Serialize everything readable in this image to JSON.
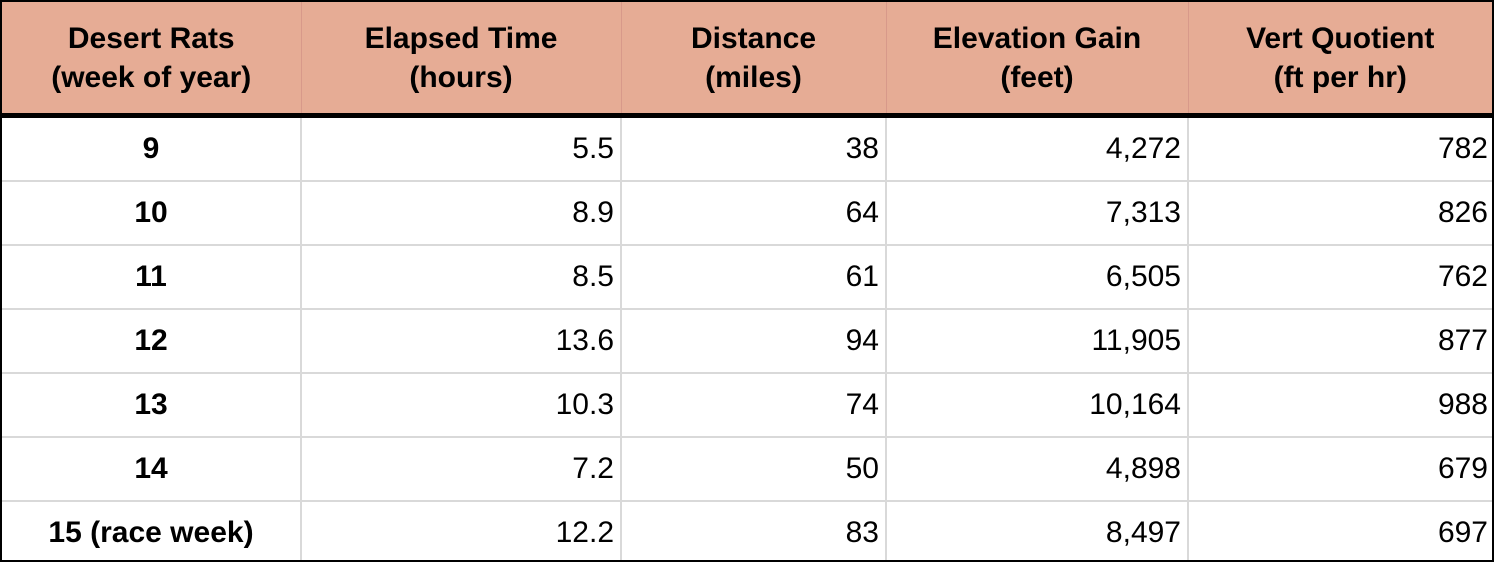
{
  "table": {
    "headers": [
      {
        "line1": "Desert Rats",
        "line2": "(week of year)"
      },
      {
        "line1": "Elapsed Time",
        "line2": "(hours)"
      },
      {
        "line1": "Distance",
        "line2": "(miles)"
      },
      {
        "line1": "Elevation Gain",
        "line2": "(feet)"
      },
      {
        "line1": "Vert Quotient",
        "line2": "(ft per hr)"
      }
    ],
    "rows": [
      {
        "week": "9",
        "elapsed": "5.5",
        "distance": "38",
        "elevation": "4,272",
        "vert": "782"
      },
      {
        "week": "10",
        "elapsed": "8.9",
        "distance": "64",
        "elevation": "7,313",
        "vert": "826"
      },
      {
        "week": "11",
        "elapsed": "8.5",
        "distance": "61",
        "elevation": "6,505",
        "vert": "762"
      },
      {
        "week": "12",
        "elapsed": "13.6",
        "distance": "94",
        "elevation": "11,905",
        "vert": "877"
      },
      {
        "week": "13",
        "elapsed": "10.3",
        "distance": "74",
        "elevation": "10,164",
        "vert": "988"
      },
      {
        "week": "14",
        "elapsed": "7.2",
        "distance": "50",
        "elevation": "4,898",
        "vert": "679"
      },
      {
        "week": "15 (race week)",
        "elapsed": "12.2",
        "distance": "83",
        "elevation": "8,497",
        "vert": "697"
      }
    ]
  },
  "colors": {
    "header_bg": "#e6ac95",
    "grid": "#d9d9d9",
    "border": "#000000"
  }
}
